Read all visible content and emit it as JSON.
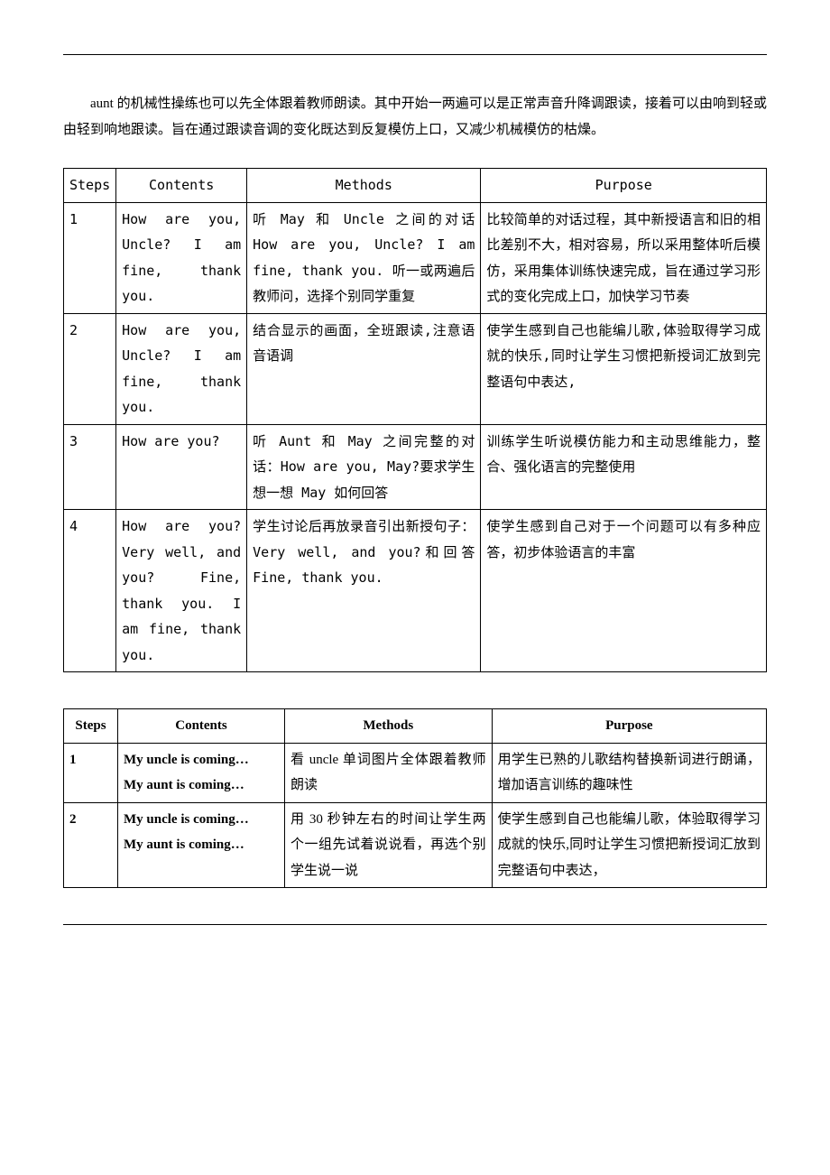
{
  "intro_paragraph": "aunt 的机械性操练也可以先全体跟着教师朗读。其中开始一两遍可以是正常声音升降调跟读，接着可以由响到轻或由轻到响地跟读。旨在通过跟读音调的变化既达到反复模仿上口，又减少机械模仿的枯燥。",
  "table1": {
    "headers": {
      "steps": "Steps",
      "contents": "Contents",
      "methods": "Methods",
      "purpose": "Purpose"
    },
    "rows": [
      {
        "step": "1",
        "contents": "How are you, Uncle? I am fine, thank you.",
        "methods": "听 May 和 Uncle 之间的对话 How are you, Uncle? I am fine, thank you. 听一或两遍后教师问，选择个别同学重复",
        "purpose": "比较简单的对话过程，其中新授语言和旧的相比差别不大，相对容易，所以采用整体听后模仿，采用集体训练快速完成，旨在通过学习形式的变化完成上口，加快学习节奏"
      },
      {
        "step": "2",
        "contents": "How are you, Uncle? I am fine, thank you.",
        "methods": "结合显示的画面，全班跟读,注意语音语调",
        "purpose": "使学生感到自己也能编儿歌,体验取得学习成就的快乐,同时让学生习惯把新授词汇放到完整语句中表达,"
      },
      {
        "step": "3",
        "contents": "How are you?",
        "methods": "听 Aunt 和 May 之间完整的对话：How are you, May?要求学生想一想 May 如何回答",
        "purpose": "训练学生听说模仿能力和主动思维能力，整合、强化语言的完整使用"
      },
      {
        "step": "4",
        "contents": "How are you? Very well, and you? Fine, thank you. I am fine, thank you.",
        "methods": "学生讨论后再放录音引出新授句子：Very well, and you?和回答 Fine, thank you.",
        "purpose": "使学生感到自己对于一个问题可以有多种应答，初步体验语言的丰富"
      }
    ]
  },
  "table2": {
    "headers": {
      "steps": "Steps",
      "contents": "Contents",
      "methods": "Methods",
      "purpose": "Purpose"
    },
    "rows": [
      {
        "step": "1",
        "contents_l1": "My uncle is coming…",
        "contents_l2": "My aunt is coming…",
        "methods": "看 uncle 单词图片全体跟着教师朗读",
        "purpose": "用学生已熟的儿歌结构替换新词进行朗诵，增加语言训练的趣味性"
      },
      {
        "step": "2",
        "contents_l1": "My uncle is coming…",
        "contents_l2": "My aunt is coming…",
        "methods": "用 30 秒钟左右的时间让学生两个一组先试着说说看，再选个别学生说一说",
        "purpose": "使学生感到自己也能编儿歌，体验取得学习成就的快乐,同时让学生习惯把新授词汇放到完整语句中表达，"
      }
    ]
  }
}
